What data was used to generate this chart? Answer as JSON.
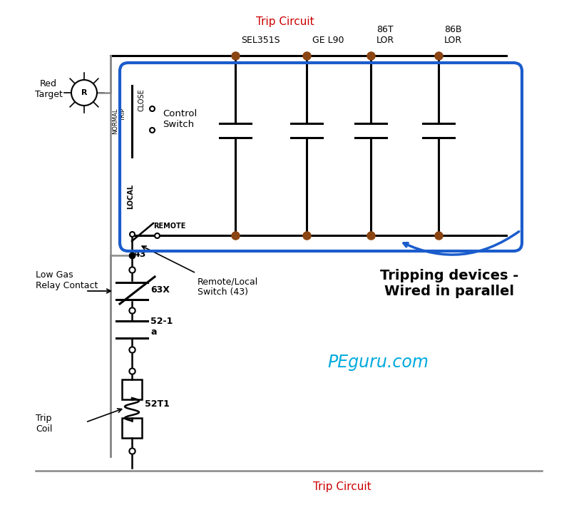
{
  "bg_color": "#ffffff",
  "line_color": "#000000",
  "blue_color": "#1a5ccc",
  "red_color": "#cc0000",
  "brown_color": "#8B4513",
  "gray_color": "#555555",
  "trip_circuit_top": "Trip Circuit",
  "trip_circuit_bot": "Trip Circuit",
  "red_target_label": "Red\nTarget",
  "control_switch_label": "Control\nSwitch",
  "sel351s_label": "SEL351S",
  "gel90_label": "GE L90",
  "t86t_label": "86T\nLOR",
  "t86b_label": "86B\nLOR",
  "local_label": "LOCAL",
  "remote_label": "REMOTE",
  "switch43_label": "43",
  "remote_local_label": "Remote/Local\nSwitch (43)",
  "low_gas_label": "Low Gas\nRelay Contact",
  "label_63x": "63X",
  "label_52_1a": "52-1\na",
  "label_52t1": "52T1",
  "trip_coil_label": "Trip\nCoil",
  "peguru_label": "PEguru.com",
  "tripping_label": "Tripping devices -\nWired in parallel",
  "close_label": "CLOSE",
  "normal_trip_label": "NORMAL\nTRIP"
}
